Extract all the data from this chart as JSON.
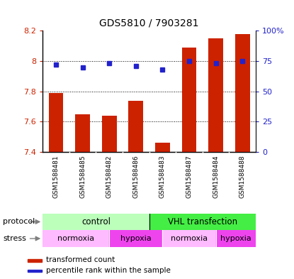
{
  "title": "GDS5810 / 7903281",
  "samples": [
    "GSM1588481",
    "GSM1588485",
    "GSM1588482",
    "GSM1588486",
    "GSM1588483",
    "GSM1588487",
    "GSM1588484",
    "GSM1588488"
  ],
  "bar_values": [
    7.79,
    7.65,
    7.64,
    7.74,
    7.46,
    8.09,
    8.15,
    8.18
  ],
  "dot_values": [
    72,
    70,
    73,
    71,
    68,
    75,
    73,
    75
  ],
  "bar_color": "#cc2200",
  "dot_color": "#2222cc",
  "ylim_left": [
    7.4,
    8.2
  ],
  "ylim_right": [
    0,
    100
  ],
  "yticks_left": [
    7.4,
    7.6,
    7.8,
    8.0,
    8.2
  ],
  "ytick_labels_left": [
    "7.4",
    "7.6",
    "7.8",
    "8",
    "8.2"
  ],
  "yticks_right": [
    0,
    25,
    50,
    75,
    100
  ],
  "ytick_labels_right": [
    "0",
    "25",
    "50",
    "75",
    "100%"
  ],
  "grid_values": [
    7.6,
    7.8,
    8.0
  ],
  "protocol_color_control": "#bbffbb",
  "protocol_color_vhl": "#44ee44",
  "stress_color_normoxia": "#ffbbff",
  "stress_color_hypoxia": "#ee44ee",
  "legend_bar_label": "transformed count",
  "legend_dot_label": "percentile rank within the sample",
  "bar_width": 0.55,
  "chart_bg": "#ffffff",
  "fig_bg": "#ffffff"
}
